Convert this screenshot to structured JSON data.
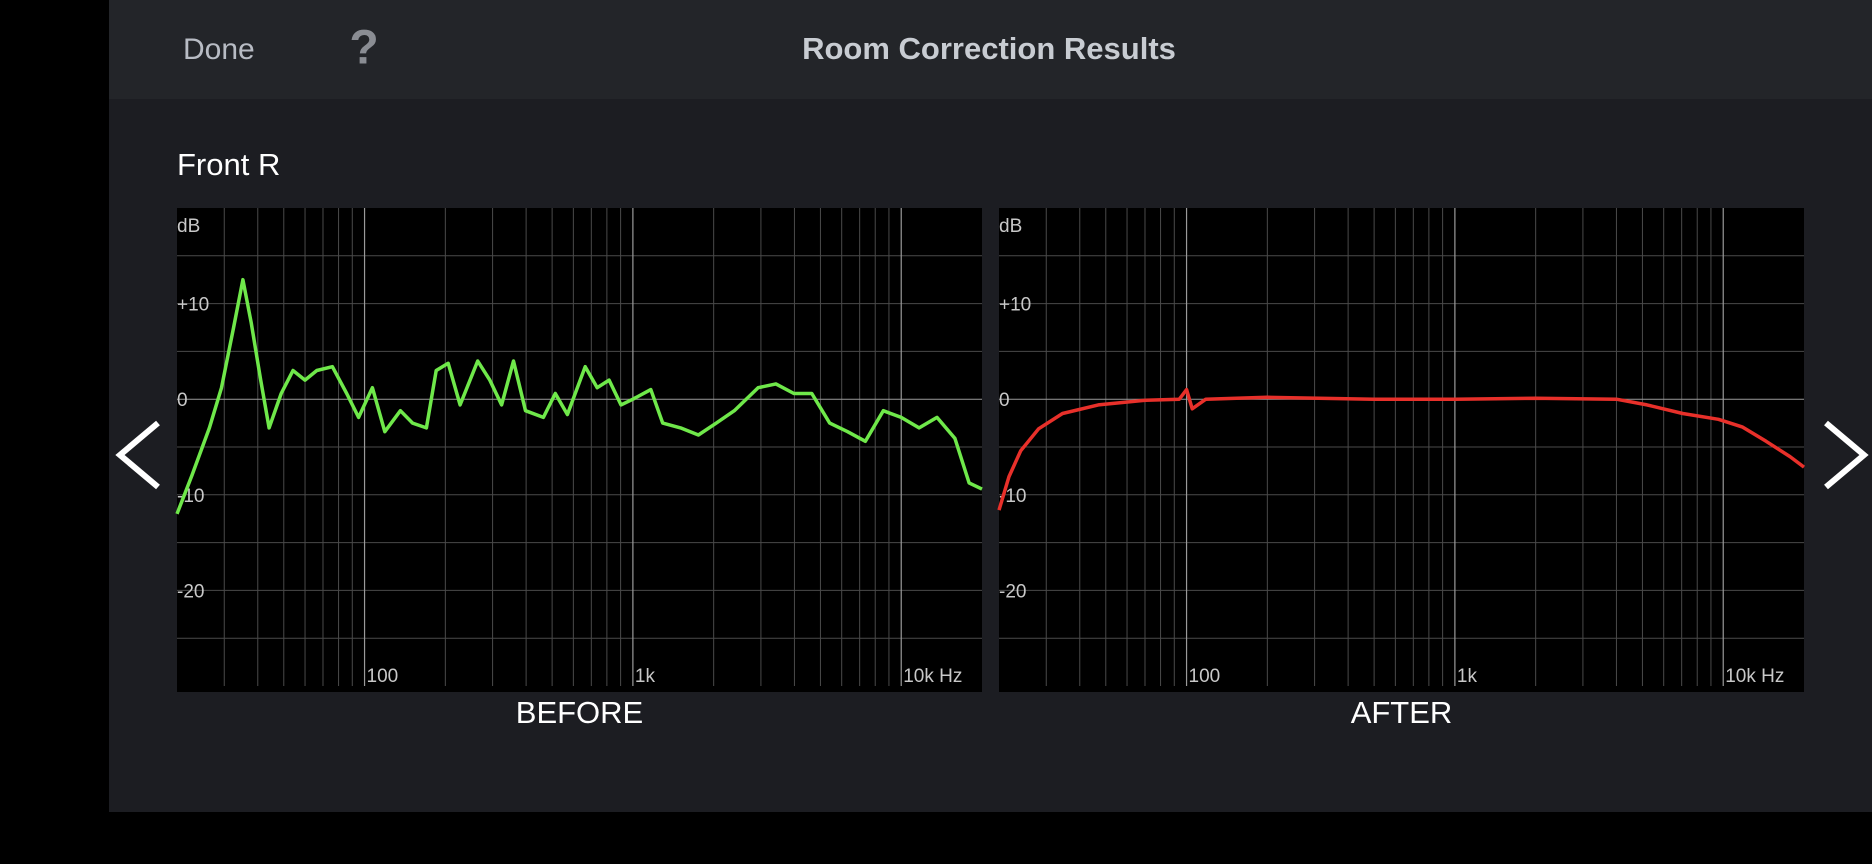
{
  "header": {
    "done": "Done",
    "help": "?",
    "title": "Room Correction Results"
  },
  "section": "Front R",
  "chart_data": [
    {
      "type": "line",
      "label": "BEFORE",
      "y_label": "dB",
      "xscale": "log",
      "grid": true,
      "xlim": [
        20,
        20000
      ],
      "ylim": [
        -30,
        20
      ],
      "xticks": [
        100,
        {
          "value": 1000,
          "label": "1k"
        },
        {
          "value": 10000,
          "label": "10k Hz"
        }
      ],
      "xminor": [
        30,
        40,
        50,
        60,
        70,
        80,
        90,
        200,
        300,
        400,
        500,
        600,
        700,
        800,
        900,
        2000,
        3000,
        4000,
        5000,
        6000,
        7000,
        8000,
        9000
      ],
      "yticks": [
        {
          "value": 10,
          "label": "+10"
        },
        0,
        -10,
        -20
      ],
      "yminor": [
        15,
        5,
        -5,
        -15,
        -25
      ],
      "x": [
        20,
        22.7,
        26.4,
        29.3,
        32.5,
        35.2,
        37.8,
        41,
        44.1,
        48.9,
        54.1,
        60,
        66.4,
        75.9,
        85.8,
        95,
        107,
        119,
        136,
        151,
        170,
        185,
        205,
        227,
        264,
        293,
        324,
        359,
        398,
        464,
        514,
        570,
        664,
        736,
        815,
        903,
        1000,
        1166,
        1292,
        1506,
        1754,
        2046,
        2387,
        2929,
        3413,
        3981,
        4642,
        5412,
        6310,
        7356,
        8577,
        10000,
        11660,
        13590,
        15850,
        17910,
        20000
      ],
      "series": [
        {
          "color": "#6fe84a",
          "values": [
            -12,
            -8,
            -3,
            1.2,
            7.5,
            12.5,
            8,
            2,
            -3,
            0.6,
            3,
            2,
            3,
            3.4,
            0.6,
            -1.9,
            1.2,
            -3.4,
            -1.2,
            -2.5,
            -3,
            3,
            3.75,
            -0.6,
            4,
            2,
            -0.6,
            4,
            -1.2,
            -1.9,
            0.6,
            -1.6,
            3.4,
            1.2,
            2,
            -0.6,
            0,
            1,
            -2.5,
            -3,
            -3.75,
            -2.5,
            -1.2,
            1.2,
            1.6,
            0.6,
            0.6,
            -2.5,
            -3.4,
            -4.4,
            -1.2,
            -1.9,
            -3,
            -1.9,
            -4.1,
            -8.75,
            -9.4
          ]
        }
      ]
    },
    {
      "type": "line",
      "label": "AFTER",
      "y_label": "dB",
      "xscale": "log",
      "grid": true,
      "xlim": [
        20,
        20000
      ],
      "ylim": [
        -30,
        20
      ],
      "xticks": [
        100,
        {
          "value": 1000,
          "label": "1k"
        },
        {
          "value": 10000,
          "label": "10k Hz"
        }
      ],
      "xminor": [
        30,
        40,
        50,
        60,
        70,
        80,
        90,
        200,
        300,
        400,
        500,
        600,
        700,
        800,
        900,
        2000,
        3000,
        4000,
        5000,
        6000,
        7000,
        8000,
        9000
      ],
      "yticks": [
        {
          "value": 10,
          "label": "+10"
        },
        0,
        -10,
        -20
      ],
      "yminor": [
        15,
        5,
        -5,
        -15,
        -25
      ],
      "x": [
        20,
        21.8,
        24.1,
        28.1,
        34.5,
        46.9,
        70.6,
        94,
        100,
        105,
        118,
        200,
        500,
        1000,
        2000,
        4000,
        5200,
        7063,
        9594,
        11770,
        14450,
        17740,
        20000
      ],
      "series": [
        {
          "color": "#e8302a",
          "values": [
            -11.6,
            -8.1,
            -5.4,
            -3.1,
            -1.5,
            -0.6,
            -0.1,
            0,
            1,
            -1,
            0,
            0.2,
            0,
            0,
            0.1,
            0,
            -0.6,
            -1.5,
            -2.1,
            -2.9,
            -4.4,
            -6,
            -7.1
          ]
        }
      ]
    }
  ]
}
